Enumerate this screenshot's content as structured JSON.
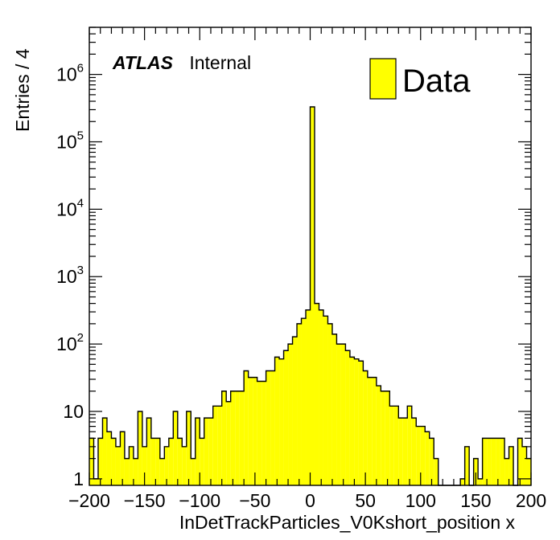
{
  "chart_data": {
    "type": "bar",
    "style": "histogram",
    "xlabel": "InDetTrackParticles_V0Kshort_position x",
    "ylabel": "Entries / 4",
    "xlim": [
      -200,
      200
    ],
    "ylim": [
      0.8,
      5000000
    ],
    "yscale": "log",
    "bin_width": 4,
    "grid": false,
    "legend": {
      "placement": "top-right",
      "entries": [
        {
          "label": "Data",
          "color": "#ffff00"
        }
      ]
    },
    "atlas_label": {
      "bold": "ATLAS",
      "text": "Internal"
    },
    "x_tick_labels": [
      "−200",
      "−150",
      "−100",
      "−50",
      "0",
      "50",
      "100",
      "150",
      "200"
    ],
    "x_ticks": [
      -200,
      -150,
      -100,
      -50,
      0,
      50,
      100,
      150,
      200
    ],
    "y_tick_labels": [
      {
        "value": 1,
        "base": "1",
        "exp": ""
      },
      {
        "value": 10,
        "base": "10",
        "exp": ""
      },
      {
        "value": 100,
        "base": "10",
        "exp": "2"
      },
      {
        "value": 1000,
        "base": "10",
        "exp": "3"
      },
      {
        "value": 10000,
        "base": "10",
        "exp": "4"
      },
      {
        "value": 100000,
        "base": "10",
        "exp": "5"
      },
      {
        "value": 1000000,
        "base": "10",
        "exp": "6"
      }
    ],
    "colors": {
      "fill": "#ffff00",
      "line": "#000000"
    },
    "bin_low_edges": [
      -200,
      -196,
      -192,
      -188,
      -184,
      -180,
      -176,
      -172,
      -168,
      -164,
      -160,
      -156,
      -152,
      -148,
      -144,
      -140,
      -136,
      -132,
      -128,
      -124,
      -120,
      -116,
      -112,
      -108,
      -104,
      -100,
      -96,
      -92,
      -88,
      -84,
      -80,
      -76,
      -72,
      -68,
      -64,
      -60,
      -56,
      -52,
      -48,
      -44,
      -40,
      -36,
      -32,
      -28,
      -24,
      -20,
      -16,
      -12,
      -8,
      -4,
      0,
      4,
      8,
      12,
      16,
      20,
      24,
      28,
      32,
      36,
      40,
      44,
      48,
      52,
      56,
      60,
      64,
      68,
      72,
      76,
      80,
      84,
      88,
      92,
      96,
      100,
      104,
      108,
      112,
      116,
      120,
      124,
      128,
      132,
      136,
      140,
      144,
      148,
      152,
      156,
      160,
      164,
      168,
      172,
      176,
      180,
      184,
      188,
      192,
      196
    ],
    "values": [
      4,
      1,
      4,
      8,
      5,
      4,
      3,
      5,
      2,
      3,
      2,
      10,
      3,
      8,
      4,
      4,
      2,
      3,
      4,
      10,
      4,
      3,
      10,
      2,
      8,
      4,
      8,
      8,
      12,
      12,
      20,
      14,
      20,
      20,
      20,
      40,
      32,
      32,
      28,
      28,
      40,
      40,
      64,
      60,
      80,
      100,
      128,
      200,
      240,
      320,
      330000,
      400,
      320,
      260,
      200,
      140,
      100,
      100,
      80,
      64,
      60,
      56,
      40,
      32,
      32,
      24,
      20,
      20,
      12,
      12,
      8,
      8,
      12,
      8,
      6,
      6,
      5,
      4,
      2,
      0,
      0,
      0,
      0,
      0,
      1,
      3,
      0,
      2,
      1,
      4,
      4,
      4,
      4,
      4,
      2,
      3,
      0,
      4,
      3,
      2
    ]
  }
}
